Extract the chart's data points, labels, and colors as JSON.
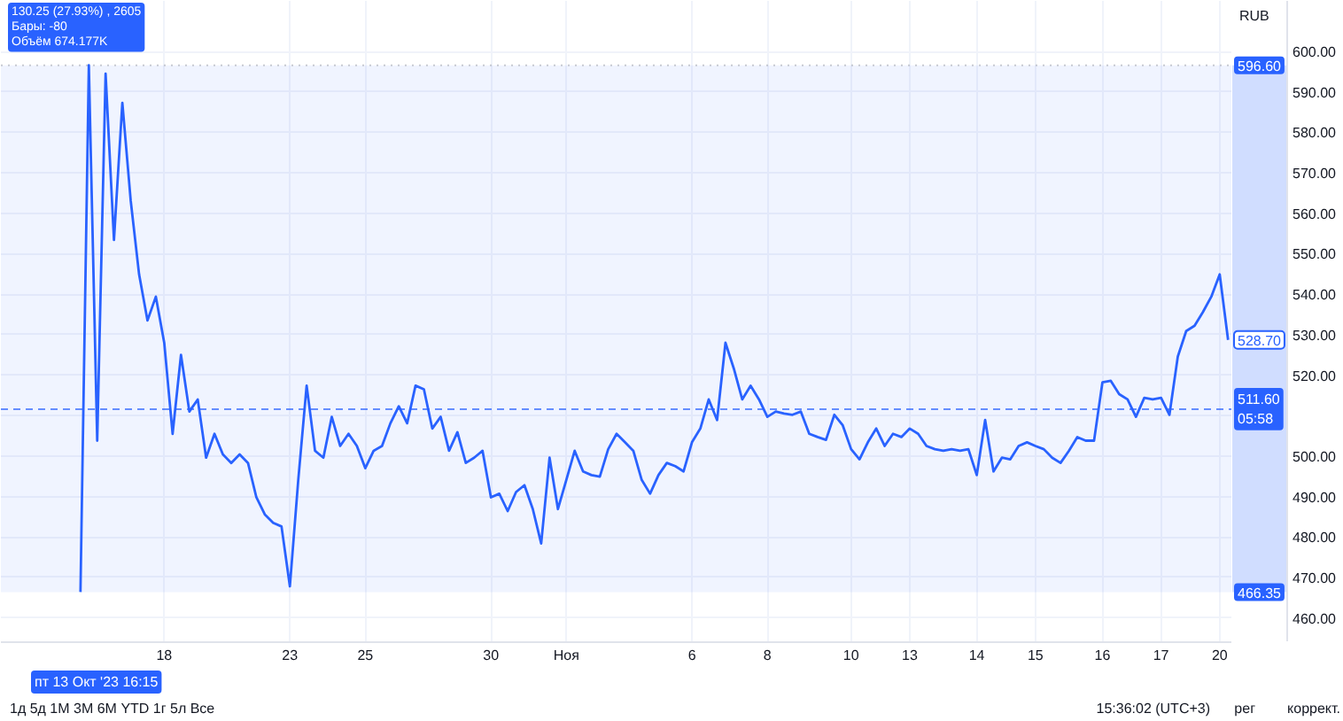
{
  "chart_data": {
    "type": "line",
    "ylabel": "RUB",
    "line_style": "solid",
    "grid": true,
    "ylim": [
      454,
      612.5
    ],
    "yticks": [
      {
        "value": 460,
        "label": "460.00"
      },
      {
        "value": 470,
        "label": "470.00"
      },
      {
        "value": 480,
        "label": "480.00"
      },
      {
        "value": 490,
        "label": "490.00"
      },
      {
        "value": 500,
        "label": "500.00"
      },
      {
        "value": 510,
        "label": null
      },
      {
        "value": 520,
        "label": "520.00"
      },
      {
        "value": 530,
        "label": "530.00"
      },
      {
        "value": 540,
        "label": "540.00"
      },
      {
        "value": 550,
        "label": "550.00"
      },
      {
        "value": 560,
        "label": "560.00"
      },
      {
        "value": 570,
        "label": "570.00"
      },
      {
        "value": 580,
        "label": "580.00"
      },
      {
        "value": 590,
        "label": "590.00"
      },
      {
        "value": 600,
        "label": "600.00"
      }
    ],
    "categories": [
      null,
      null,
      null,
      null,
      null,
      null,
      null,
      null,
      null,
      null,
      null,
      null,
      null,
      null,
      null,
      null,
      null,
      null,
      null,
      "18",
      null,
      null,
      null,
      null,
      null,
      null,
      null,
      null,
      null,
      null,
      null,
      null,
      null,
      null,
      "23",
      null,
      null,
      null,
      null,
      null,
      null,
      null,
      null,
      "25",
      null,
      null,
      null,
      null,
      null,
      null,
      null,
      null,
      null,
      null,
      null,
      null,
      null,
      null,
      "30",
      null,
      null,
      null,
      null,
      null,
      null,
      null,
      null,
      "Ноя",
      null,
      null,
      null,
      null,
      null,
      null,
      null,
      null,
      null,
      null,
      null,
      null,
      null,
      null,
      "6",
      null,
      null,
      null,
      null,
      null,
      null,
      null,
      null,
      "8",
      null,
      null,
      null,
      null,
      null,
      null,
      null,
      null,
      null,
      "10",
      null,
      null,
      null,
      null,
      null,
      null,
      "13",
      null,
      null,
      null,
      null,
      null,
      null,
      null,
      "14",
      null,
      null,
      null,
      null,
      null,
      null,
      "15",
      null,
      null,
      null,
      null,
      null,
      null,
      null,
      "16",
      null,
      null,
      null,
      null,
      null,
      null,
      "17",
      null,
      null,
      null,
      null,
      null,
      null,
      "20",
      null
    ],
    "series": [
      {
        "color": "#2962ff",
        "values": [
          null,
          null,
          null,
          null,
          null,
          null,
          null,
          null,
          null,
          466.4,
          596.6,
          503.8,
          594.5,
          553.4,
          587.3,
          563.1,
          544.9,
          533.5,
          539.4,
          528.0,
          505.5,
          525.0,
          511.0,
          514.0,
          499.6,
          505.5,
          500.4,
          498.3,
          500.4,
          498.3,
          489.8,
          485.6,
          483.5,
          482.6,
          467.8,
          494.1,
          517.4,
          501.3,
          499.6,
          509.7,
          502.5,
          505.5,
          502.5,
          497.0,
          501.3,
          502.5,
          508.1,
          512.3,
          508.1,
          517.4,
          516.5,
          506.8,
          509.7,
          501.3,
          505.9,
          498.3,
          499.6,
          501.3,
          489.8,
          490.7,
          486.4,
          491.1,
          492.8,
          486.9,
          478.4,
          499.6,
          486.9,
          494.1,
          501.3,
          496.2,
          495.3,
          494.9,
          501.7,
          505.5,
          503.4,
          501.3,
          494.1,
          490.7,
          495.3,
          498.3,
          497.5,
          496.2,
          503.4,
          506.8,
          514.0,
          508.9,
          528.0,
          521.6,
          514.0,
          517.4,
          514.0,
          509.7,
          511.0,
          510.5,
          510.2,
          511.0,
          505.5,
          504.7,
          504.0,
          510.2,
          507.6,
          501.7,
          499.2,
          503.4,
          506.8,
          502.5,
          505.5,
          504.7,
          506.8,
          505.5,
          502.5,
          501.7,
          501.3,
          501.7,
          501.3,
          501.7,
          495.3,
          508.9,
          496.2,
          499.6,
          499.2,
          502.5,
          503.4,
          502.5,
          501.7,
          499.6,
          498.3,
          501.3,
          504.7,
          503.8,
          503.8,
          518.2,
          518.6,
          515.3,
          514.0,
          509.7,
          514.4,
          514.0,
          514.4,
          510.2,
          524.6,
          530.9,
          532.2,
          535.6,
          539.4,
          544.9,
          528.7
        ],
        "value_labels": [
          null,
          null,
          null,
          null,
          null,
          null,
          null,
          null,
          null,
          null,
          null,
          null,
          null,
          null,
          null,
          null,
          null,
          null,
          null,
          null,
          null,
          null,
          null,
          null,
          null,
          null,
          null,
          null,
          null,
          null,
          null,
          null,
          null,
          null,
          null,
          null,
          null,
          null,
          null,
          null,
          null,
          null,
          null,
          null,
          null,
          null,
          null,
          null,
          null,
          null,
          null,
          null,
          null,
          null,
          null,
          null,
          null,
          null,
          null,
          null,
          null,
          null,
          null,
          null,
          null,
          null,
          null,
          null,
          null,
          null,
          null,
          null,
          null,
          null,
          null,
          null,
          null,
          null,
          null,
          null,
          null,
          null,
          null,
          null,
          null,
          null,
          null,
          null,
          null,
          null,
          null,
          null,
          null,
          null,
          null,
          null,
          null,
          null,
          null,
          null,
          null,
          null,
          null,
          null,
          null,
          null,
          null,
          null,
          null,
          null,
          null,
          null,
          null,
          null,
          null,
          null,
          null,
          null,
          null,
          null,
          null,
          null,
          null,
          null,
          null,
          null,
          null,
          null,
          null,
          null,
          null,
          null,
          null,
          null,
          null,
          null,
          null,
          null,
          null,
          null,
          null,
          null,
          null,
          null,
          null,
          null,
          "528.70"
        ]
      }
    ],
    "ref_lines": [
      {
        "axis": "y",
        "value": 596.6,
        "label": "596.60",
        "color": "#b2b5be",
        "line_style": "dotted"
      },
      {
        "axis": "y",
        "value": 511.6,
        "label": "511.60\n05:58",
        "color": "#2962ff",
        "line_style": "dashed"
      }
    ],
    "bands": [
      {
        "axis": "y",
        "from": 466.35,
        "to": 596.6,
        "label": "130.25 (27.93%) , 2605\nБары: -80\nОбъём 674.177K",
        "color": "#2962ff"
      }
    ],
    "annotations": [
      {
        "text": "466.35",
        "y": 466.35
      },
      "пт 13 Окт '23 16:15",
      "1д 5д 1М 3М 6М YTD 1г 5л Все",
      "15:36:02 (UTC+3)",
      "рег",
      "коррект."
    ]
  }
}
